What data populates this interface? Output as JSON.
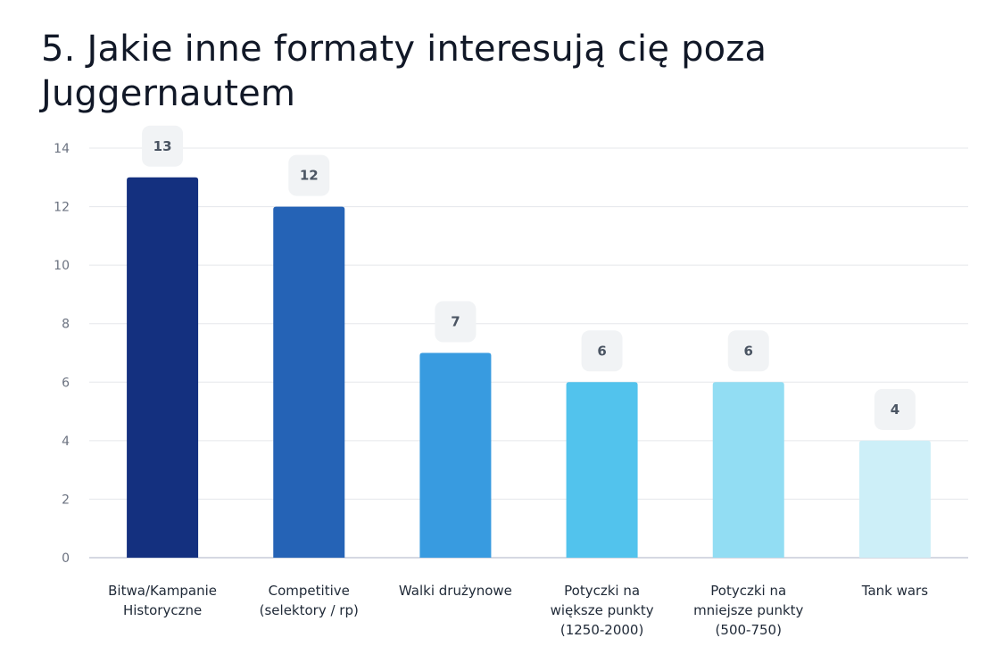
{
  "chart_data": {
    "type": "bar",
    "title": "5. Jakie inne formaty interesują cię poza Juggernautem",
    "categories": [
      [
        "Bitwa/Kampanie",
        "Historyczne"
      ],
      [
        "Competitive",
        "(selektory / rp)"
      ],
      [
        "Walki drużynowe"
      ],
      [
        "Potyczki na",
        "większe punkty",
        "(1250-2000)"
      ],
      [
        "Potyczki na",
        "mniejsze punkty",
        "(500-750)"
      ],
      [
        "Tank wars"
      ]
    ],
    "values": [
      13,
      12,
      7,
      6,
      6,
      4
    ],
    "colors": [
      "#14307f",
      "#2563b6",
      "#389be0",
      "#52c3ed",
      "#92ddf3",
      "#cdeff8"
    ],
    "ylim": [
      0,
      14
    ],
    "yticks": [
      0,
      2,
      4,
      6,
      8,
      10,
      12,
      14
    ],
    "grid": true,
    "data_labels": true
  }
}
